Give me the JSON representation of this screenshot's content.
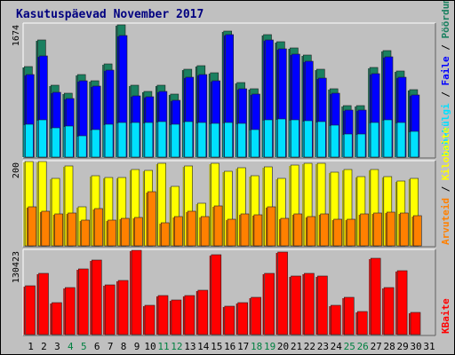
{
  "title": "Kasutuspäevad November 2017",
  "colors": {
    "background": "#c0c0c0",
    "title": "#000080",
    "axis_text": "#000000",
    "weekend_label": "#008040"
  },
  "chart_data": [
    {
      "type": "bar",
      "panel": "top",
      "y_max_label": "1674",
      "ylim": [
        0,
        1674
      ],
      "categories": [
        "1",
        "2",
        "3",
        "4",
        "5",
        "6",
        "7",
        "8",
        "9",
        "10",
        "11",
        "12",
        "13",
        "14",
        "15",
        "16",
        "17",
        "18",
        "19",
        "20",
        "21",
        "22",
        "23",
        "24",
        "25",
        "26",
        "27",
        "28",
        "29",
        "30",
        "31"
      ],
      "weekend_categories": [
        "4",
        "5",
        "11",
        "12",
        "18",
        "19",
        "25",
        "26"
      ],
      "legend": [
        {
          "label": "Pöördumisi",
          "color": "#1a8060"
        },
        {
          "label": "Faile",
          "color": "#0000ff"
        },
        {
          "label": "Lehekülgi",
          "color": "#00e0ff"
        }
      ],
      "legend_separator": " / ",
      "series": [
        {
          "name": "Pöördumisi",
          "color": "#1a8060",
          "values": [
            1134,
            1472,
            900,
            800,
            1034,
            957,
            1175,
            1661,
            903,
            823,
            900,
            797,
            1105,
            1144,
            1060,
            1590,
            943,
            862,
            1539,
            1452,
            1372,
            1288,
            1107,
            863,
            643,
            643,
            1128,
            1339,
            1082,
            851,
            null
          ]
        },
        {
          "name": "Faile",
          "color": "#0000ff",
          "values": [
            1035,
            1276,
            819,
            731,
            959,
            890,
            1095,
            1528,
            772,
            759,
            830,
            712,
            999,
            1040,
            963,
            1539,
            861,
            790,
            1478,
            1367,
            1296,
            1201,
            988,
            801,
            591,
            591,
            1050,
            1259,
            999,
            777,
            null
          ]
        },
        {
          "name": "Lehekülgi",
          "color": "#00e0ff",
          "values": [
            414,
            473,
            364,
            386,
            267,
            348,
            410,
            430,
            431,
            434,
            442,
            409,
            449,
            433,
            422,
            431,
            422,
            351,
            473,
            476,
            473,
            459,
            447,
            407,
            292,
            292,
            438,
            468,
            433,
            324,
            null
          ]
        }
      ]
    },
    {
      "type": "bar",
      "panel": "middle",
      "y_max_label": "200",
      "ylim": [
        0,
        200
      ],
      "legend": [
        {
          "label": "Kilobaite",
          "color": "#ffff00"
        },
        {
          "label": "Arvuteid",
          "color": "#ff8000"
        }
      ],
      "legend_separator": " / ",
      "series": [
        {
          "name": "Kilobaite",
          "color": "#ffff00",
          "values": [
            200,
            199,
            161,
            190,
            93,
            166,
            163,
            163,
            180,
            179,
            196,
            140,
            190,
            102,
            195,
            177,
            185,
            167,
            187,
            160,
            192,
            196,
            196,
            175,
            182,
            164,
            181,
            164,
            154,
            160,
            null
          ]
        },
        {
          "name": "Arvuteid",
          "color": "#ff8000",
          "values": [
            92,
            82,
            75,
            78,
            61,
            89,
            61,
            65,
            68,
            129,
            55,
            69,
            82,
            69,
            95,
            63,
            75,
            73,
            92,
            65,
            75,
            69,
            75,
            63,
            63,
            76,
            77,
            81,
            77,
            72,
            null
          ]
        }
      ]
    },
    {
      "type": "bar",
      "panel": "bottom",
      "y_max_label": "130423",
      "ylim": [
        0,
        130423
      ],
      "legend": [
        {
          "label": "KBaite",
          "color": "#ff0000"
        }
      ],
      "series": [
        {
          "name": "KBaite",
          "color": "#ff0000",
          "values": [
            75000,
            95000,
            50000,
            73000,
            102000,
            115000,
            77000,
            84000,
            130423,
            45000,
            60000,
            53000,
            60000,
            69000,
            123000,
            44000,
            49000,
            58000,
            95000,
            128000,
            90000,
            95000,
            90000,
            45000,
            57000,
            36000,
            118000,
            73000,
            99000,
            34000,
            null
          ]
        }
      ]
    }
  ]
}
